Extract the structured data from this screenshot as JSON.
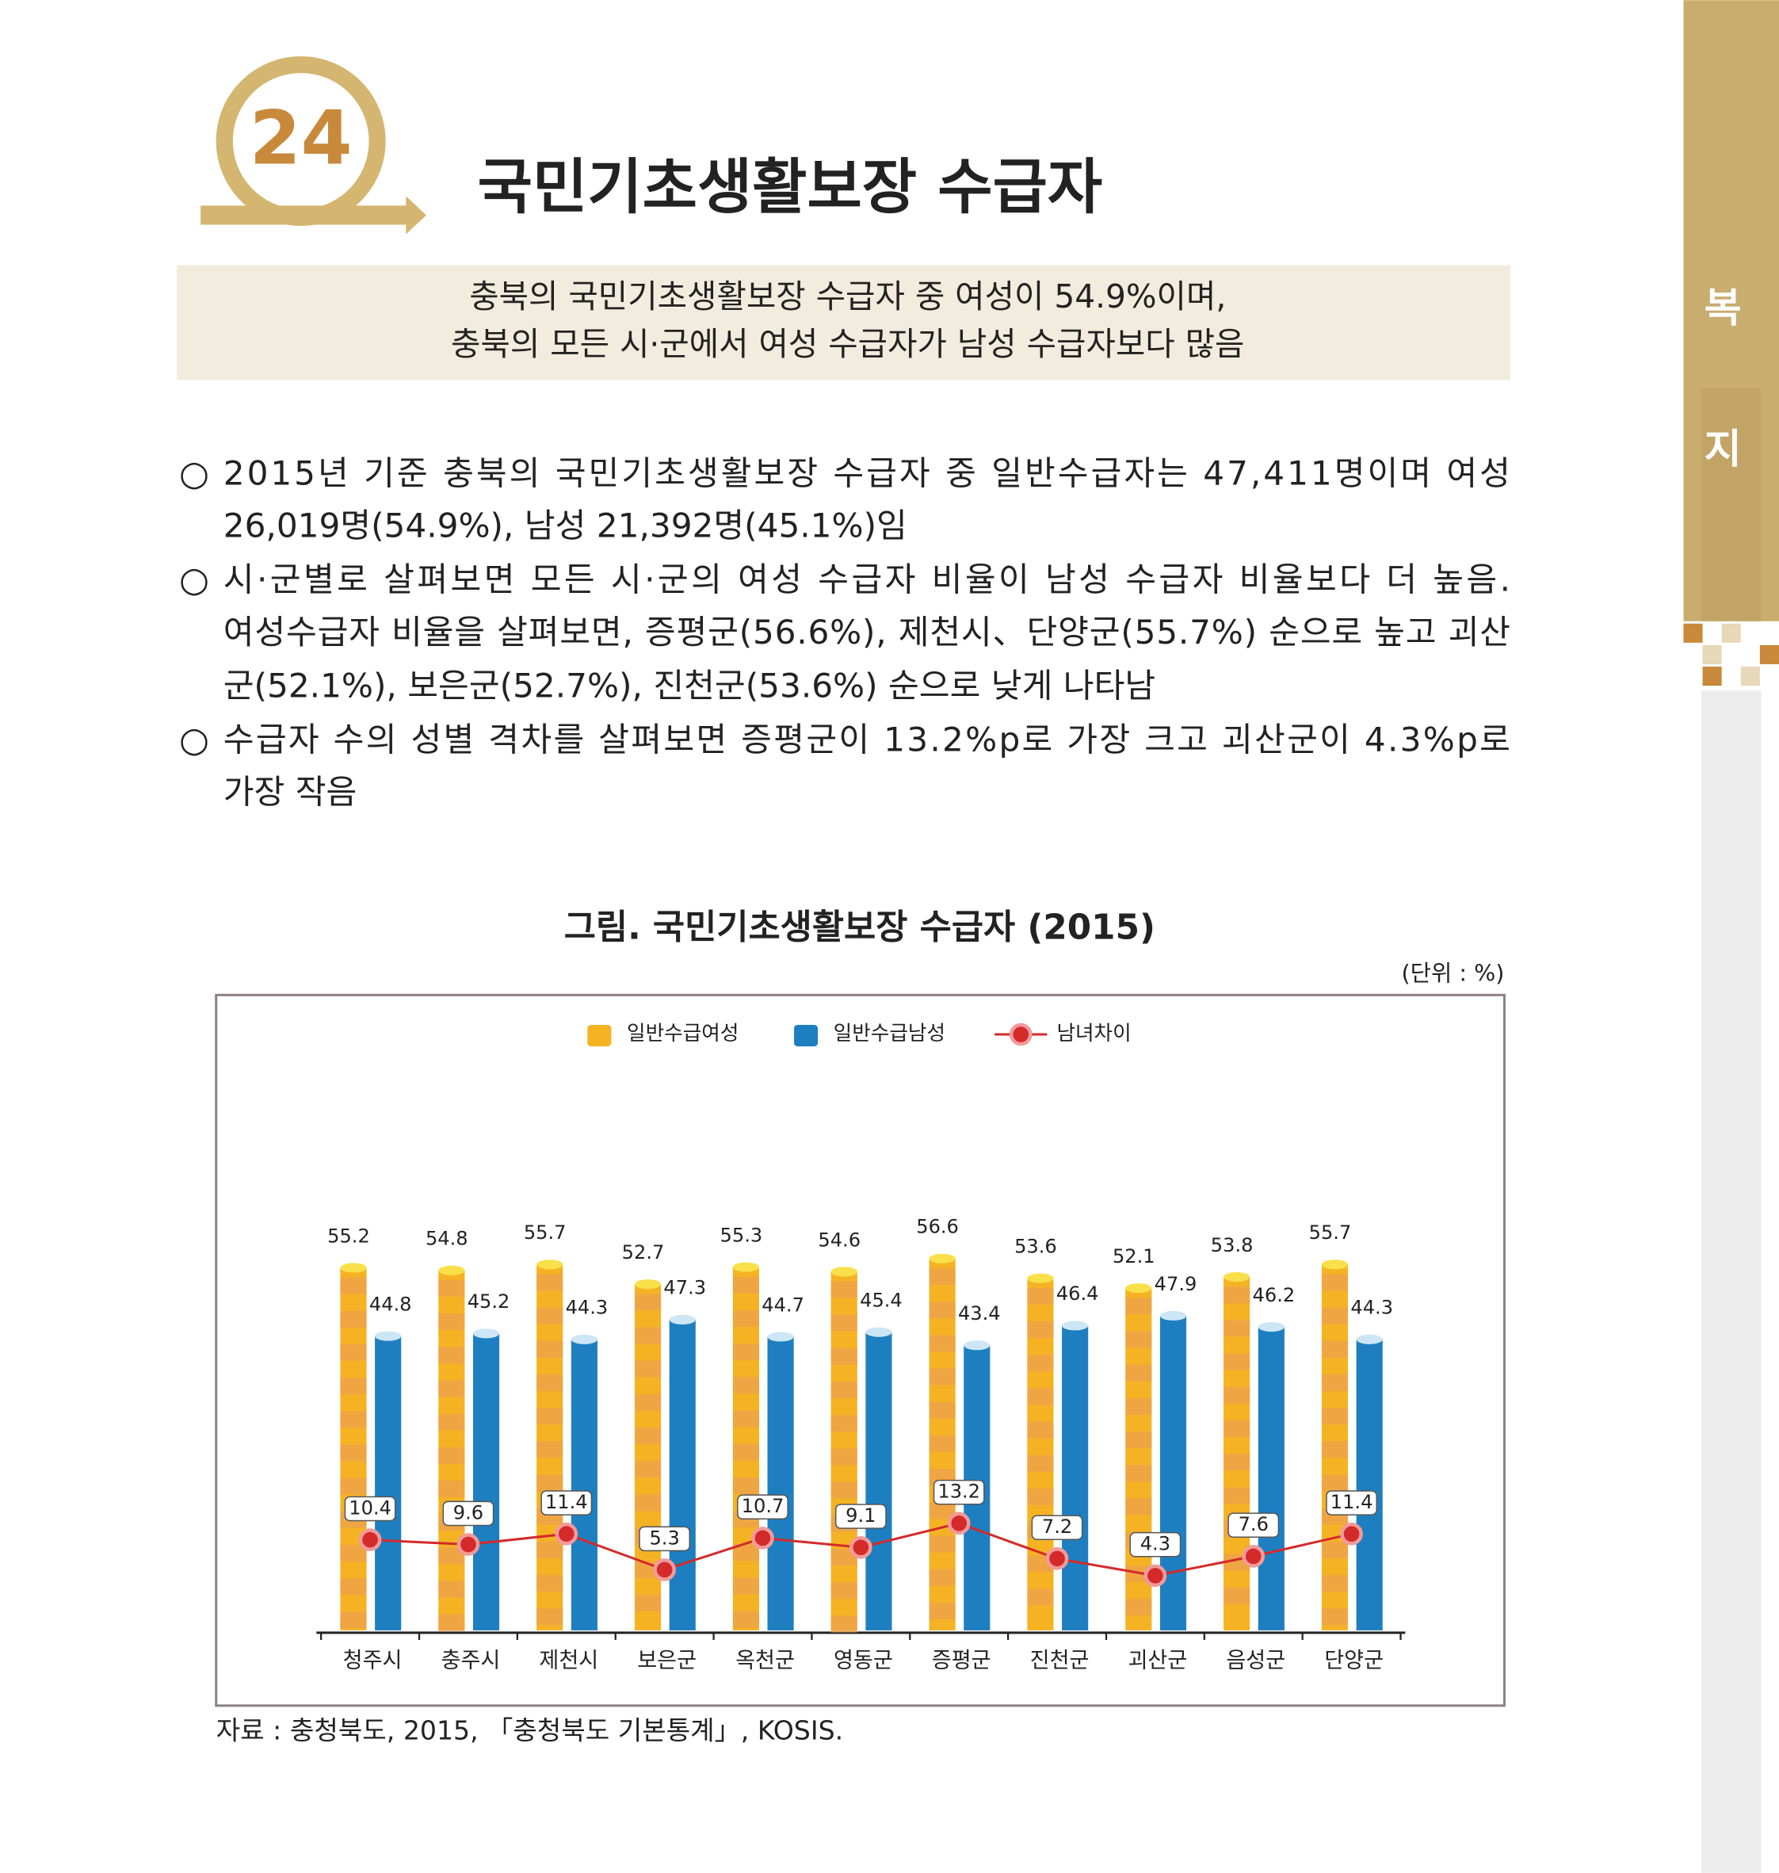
{
  "header": {
    "number": "24",
    "title": "국민기초생활보장 수급자"
  },
  "side_tab": [
    "복",
    "지"
  ],
  "summary": [
    "충북의 국민기초생활보장 수급자 중 여성이 54.9%이며,",
    "충북의 모든 시·군에서 여성 수급자가 남성 수급자보다 많음"
  ],
  "bullets": [
    [
      "2015년 기준 충북의 국민기초생활보장 수급자 중 일반수급자는 47,411명이며 여성",
      "26,019명(54.9%), 남성 21,392명(45.1%)임"
    ],
    [
      "시·군별로 살펴보면 모든 시·군의 여성 수급자 비율이 남성 수급자 비율보다 더 높음.",
      "여성수급자 비율을 살펴보면, 증평군(56.6%), 제천시、단양군(55.7%) 순으로 높고 괴산",
      "군(52.1%), 보은군(52.7%), 진천군(53.6%) 순으로 낮게 나타남"
    ],
    [
      "수급자 수의 성별 격차를 살펴보면 증평군이 13.2%p로 가장 크고 괴산군이 4.3%p로",
      "가장 작음"
    ]
  ],
  "bullet_mark": "○",
  "figure_title": "그림. 국민기초생활보장 수급자 (2015)",
  "unit": "(단위 : %)",
  "source": "자료 : 충청북도, 2015, 「충청북도 기본통계」, KOSIS.",
  "chart_data": {
    "type": "bar",
    "categories": [
      "청주시",
      "충주시",
      "제천시",
      "보은군",
      "옥천군",
      "영동군",
      "증평군",
      "진천군",
      "괴산군",
      "음성군",
      "단양군"
    ],
    "series": [
      {
        "name": "일반수급여성",
        "color": "#f5b324",
        "values": [
          55.2,
          54.8,
          55.7,
          52.7,
          55.3,
          54.6,
          56.6,
          53.6,
          52.1,
          53.8,
          55.7
        ]
      },
      {
        "name": "일반수급남성",
        "color": "#1e7fc0",
        "values": [
          44.8,
          45.2,
          44.3,
          47.3,
          44.7,
          45.4,
          43.4,
          46.4,
          47.9,
          46.2,
          44.3
        ]
      },
      {
        "name": "남녀차이",
        "color": "#d42a2a",
        "type": "line",
        "axis": "y2",
        "values": [
          10.4,
          9.6,
          11.4,
          5.3,
          10.7,
          9.1,
          13.2,
          7.2,
          4.3,
          7.6,
          11.4
        ]
      }
    ],
    "ylim": [
      0,
      60
    ],
    "y2lim": [
      -5,
      62
    ],
    "legend": "top"
  }
}
